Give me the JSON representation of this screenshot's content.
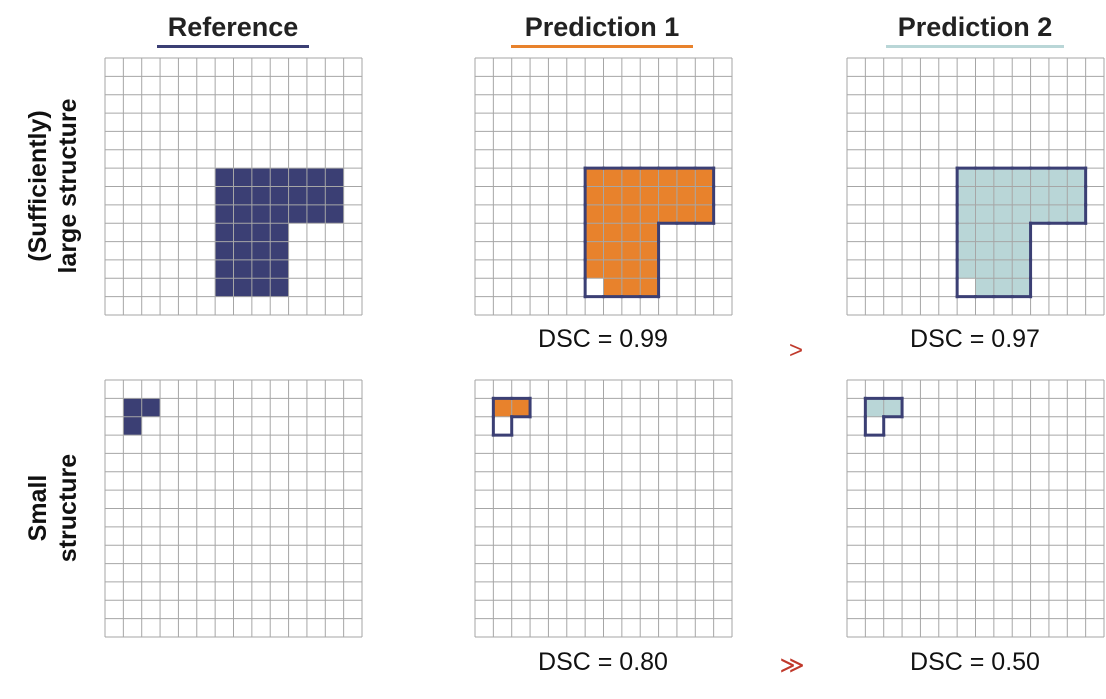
{
  "headers": {
    "reference": {
      "label": "Reference",
      "color": "#3b3f74"
    },
    "prediction1": {
      "label": "Prediction 1",
      "color": "#e8822c"
    },
    "prediction2": {
      "label": "Prediction 2",
      "color": "#b9d6d7"
    }
  },
  "rows": {
    "large": {
      "label_line1": "(Sufficiently)",
      "label_line2": "large structure"
    },
    "small": {
      "label_line1": "Small",
      "label_line2": "structure"
    }
  },
  "scores": {
    "large_p1": "DSC = 0.99",
    "large_p2": "DSC = 0.97",
    "large_cmp": ">",
    "small_p1": "DSC = 0.80",
    "small_p2": "DSC = 0.50",
    "small_cmp": "≫"
  },
  "colors": {
    "reference_fill": "#3b3f74",
    "prediction1_fill": "#e8822c",
    "prediction2_fill": "#b9d6d7",
    "outline": "#3b3f74",
    "grid_line": "#a6a6a6",
    "comparison": "#c0392b"
  },
  "grid": {
    "cols": 14,
    "rows": 14
  },
  "shapes": {
    "large_reference_cells": [
      [
        6,
        6
      ],
      [
        7,
        6
      ],
      [
        8,
        6
      ],
      [
        9,
        6
      ],
      [
        10,
        6
      ],
      [
        11,
        6
      ],
      [
        12,
        6
      ],
      [
        6,
        7
      ],
      [
        7,
        7
      ],
      [
        8,
        7
      ],
      [
        9,
        7
      ],
      [
        10,
        7
      ],
      [
        11,
        7
      ],
      [
        12,
        7
      ],
      [
        6,
        8
      ],
      [
        7,
        8
      ],
      [
        8,
        8
      ],
      [
        9,
        8
      ],
      [
        10,
        8
      ],
      [
        11,
        8
      ],
      [
        12,
        8
      ],
      [
        6,
        9
      ],
      [
        7,
        9
      ],
      [
        8,
        9
      ],
      [
        9,
        9
      ],
      [
        6,
        10
      ],
      [
        7,
        10
      ],
      [
        8,
        10
      ],
      [
        9,
        10
      ],
      [
        6,
        11
      ],
      [
        7,
        11
      ],
      [
        8,
        11
      ],
      [
        9,
        11
      ],
      [
        6,
        12
      ],
      [
        7,
        12
      ],
      [
        8,
        12
      ],
      [
        9,
        12
      ]
    ],
    "large_prediction_cells": [
      [
        6,
        6
      ],
      [
        7,
        6
      ],
      [
        8,
        6
      ],
      [
        9,
        6
      ],
      [
        10,
        6
      ],
      [
        11,
        6
      ],
      [
        12,
        6
      ],
      [
        6,
        7
      ],
      [
        7,
        7
      ],
      [
        8,
        7
      ],
      [
        9,
        7
      ],
      [
        10,
        7
      ],
      [
        11,
        7
      ],
      [
        12,
        7
      ],
      [
        6,
        8
      ],
      [
        7,
        8
      ],
      [
        8,
        8
      ],
      [
        9,
        8
      ],
      [
        10,
        8
      ],
      [
        11,
        8
      ],
      [
        12,
        8
      ],
      [
        6,
        9
      ],
      [
        7,
        9
      ],
      [
        8,
        9
      ],
      [
        9,
        9
      ],
      [
        6,
        10
      ],
      [
        7,
        10
      ],
      [
        8,
        10
      ],
      [
        9,
        10
      ],
      [
        6,
        11
      ],
      [
        7,
        11
      ],
      [
        8,
        11
      ],
      [
        9,
        11
      ],
      [
        7,
        12
      ],
      [
        8,
        12
      ],
      [
        9,
        12
      ]
    ],
    "small_reference_cells": [
      [
        1,
        1
      ],
      [
        2,
        1
      ],
      [
        1,
        2
      ]
    ],
    "small_prediction_cells": [
      [
        1,
        1
      ],
      [
        2,
        1
      ]
    ]
  }
}
